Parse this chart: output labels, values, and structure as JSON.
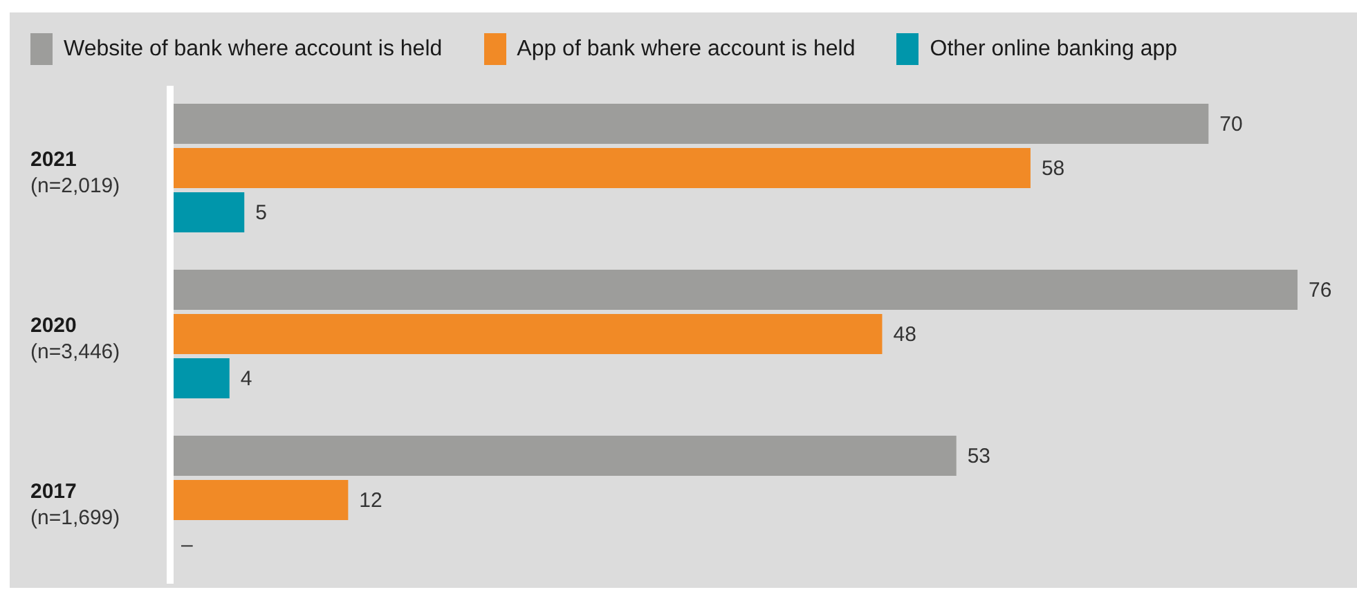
{
  "chart_data": {
    "type": "bar",
    "orientation": "horizontal",
    "categories": [
      "2021\n(n=2,019)",
      "2020\n(n=3,446)",
      "2017\n(n=1,699)"
    ],
    "series": [
      {
        "name": "Website of bank where account is held",
        "color": "#9d9d9b",
        "values": [
          70,
          76,
          53
        ],
        "value_labels": [
          "70",
          "76",
          "53"
        ]
      },
      {
        "name": "App of bank where account is held",
        "color": "#f18a26",
        "values": [
          58,
          48,
          12
        ],
        "value_labels": [
          "58",
          "48",
          "12"
        ]
      },
      {
        "name": "Other online banking app",
        "color": "#0096ab",
        "values": [
          5,
          4,
          null
        ],
        "value_labels": [
          "5",
          "4",
          "–"
        ]
      }
    ],
    "legend": "top left",
    "grid": false
  }
}
